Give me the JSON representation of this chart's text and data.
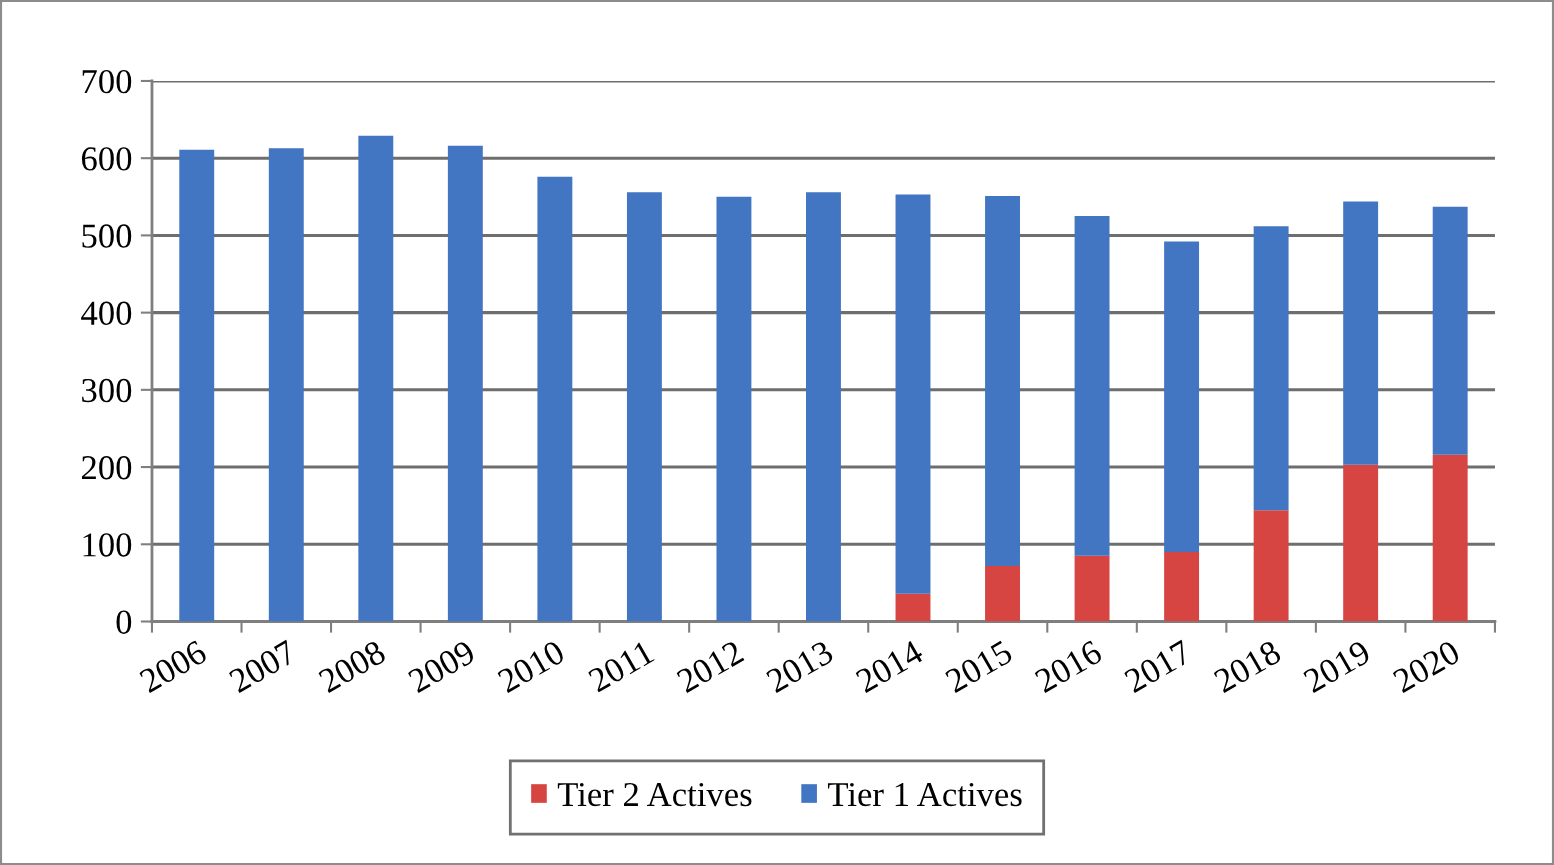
{
  "chart_data": {
    "type": "bar",
    "stacked": true,
    "categories": [
      "2006",
      "2007",
      "2008",
      "2009",
      "2010",
      "2011",
      "2012",
      "2013",
      "2014",
      "2015",
      "2016",
      "2017",
      "2018",
      "2019",
      "2020"
    ],
    "series": [
      {
        "name": "Tier 2 Actives",
        "color": "#d64541",
        "values": [
          null,
          null,
          null,
          null,
          null,
          null,
          null,
          null,
          36,
          72,
          85,
          90,
          144,
          203,
          216
        ]
      },
      {
        "name": "Tier 1 Actives",
        "color": "#4275c2",
        "values": [
          611,
          613,
          629,
          616,
          576,
          556,
          550,
          556,
          517,
          479,
          440,
          402,
          368,
          341,
          321
        ]
      }
    ],
    "ylim": [
      0,
      700
    ],
    "yticks": [
      0,
      100,
      200,
      300,
      400,
      500,
      600,
      700
    ],
    "grid": "y",
    "legend": "bottom"
  }
}
